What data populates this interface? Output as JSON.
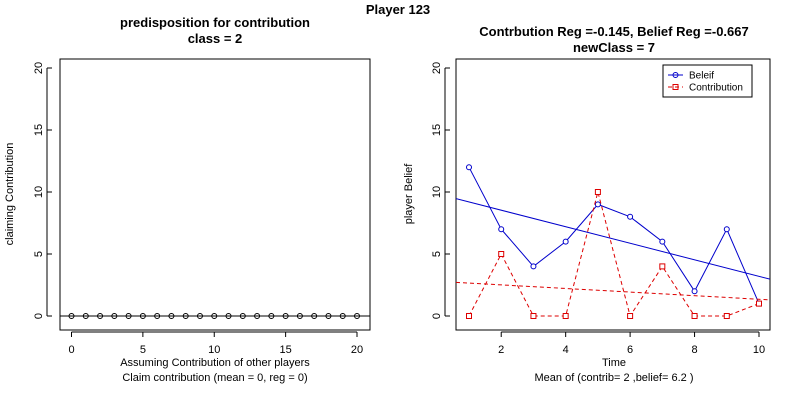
{
  "figure": {
    "title": "Player 123"
  },
  "chart_data": [
    {
      "type": "scatter",
      "title": "predisposition for contribution",
      "subtitle": "class = 2",
      "xlabel": "Assuming Contribution of other players",
      "xlabel2": "Claim contribution (mean = 0, reg = 0)",
      "ylabel": "claiming Contribution",
      "xlim": [
        0,
        20
      ],
      "ylim": [
        0,
        20
      ],
      "xticks": [
        "0",
        "5",
        "10",
        "15",
        "20"
      ],
      "yticks": [
        "0",
        "5",
        "10",
        "15",
        "20"
      ],
      "x": [
        0,
        1,
        2,
        3,
        4,
        5,
        6,
        7,
        8,
        9,
        10,
        11,
        12,
        13,
        14,
        15,
        16,
        17,
        18,
        19,
        20
      ],
      "y": [
        0,
        0,
        0,
        0,
        0,
        0,
        0,
        0,
        0,
        0,
        0,
        0,
        0,
        0,
        0,
        0,
        0,
        0,
        0,
        0,
        0
      ],
      "regression": {
        "intercept": 0,
        "slope": 0
      },
      "colors": {
        "points": "#000000",
        "regression": "#000000"
      }
    },
    {
      "type": "line",
      "title": "Contrbution Reg =-0.145, Belief Reg =-0.667",
      "subtitle": "newClass = 7",
      "xlabel": "Time",
      "xlabel2": "Mean of (contrib= 2  ,belief= 6.2 )",
      "ylabel": "player Belief",
      "xlim": [
        1,
        10
      ],
      "ylim": [
        0,
        20
      ],
      "xticks": [
        "2",
        "4",
        "6",
        "8",
        "10"
      ],
      "yticks": [
        "0",
        "5",
        "10",
        "15",
        "20"
      ],
      "x": [
        1,
        2,
        3,
        4,
        5,
        6,
        7,
        8,
        9,
        10
      ],
      "series": [
        {
          "name": "Beleif",
          "values": [
            12,
            7,
            4,
            6,
            9,
            8,
            6,
            2,
            7,
            1
          ],
          "color": "#0000cc",
          "marker": "circle",
          "dash": "solid",
          "regression": {
            "intercept": 9.867,
            "slope": -0.667
          }
        },
        {
          "name": "Contribution",
          "values": [
            0,
            5,
            0,
            0,
            10,
            0,
            4,
            0,
            0,
            1
          ],
          "color": "#dd0000",
          "marker": "square",
          "dash": "dashed",
          "regression": {
            "intercept": 2.8,
            "slope": -0.145
          }
        }
      ],
      "legend_position": "top-right"
    }
  ]
}
